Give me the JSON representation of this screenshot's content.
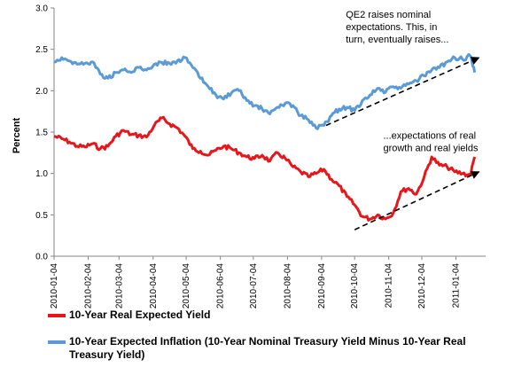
{
  "chart_data": {
    "type": "line",
    "title": "",
    "xlabel": "",
    "ylabel": "Percent",
    "ylim": [
      0,
      3
    ],
    "y_ticks": [
      "0.0",
      "0.5",
      "1.0",
      "1.5",
      "2.0",
      "2.5",
      "3.0"
    ],
    "x_tick_labels": [
      "2010-01-04",
      "2010-02-04",
      "2010-03-04",
      "2010-04-04",
      "2010-05-04",
      "2010-06-04",
      "2010-07-04",
      "2010-08-04",
      "2010-09-04",
      "2010-10-04",
      "2010-11-04",
      "2010-12-04",
      "2011-01-04"
    ],
    "grid": false,
    "legend_position": "bottom",
    "series": [
      {
        "name": "10-Year Real Expected Yield",
        "color": "#e8161b",
        "points": [
          [
            "2010-01-04",
            1.45
          ],
          [
            "2010-01-11",
            1.42
          ],
          [
            "2010-01-18",
            1.38
          ],
          [
            "2010-01-25",
            1.33
          ],
          [
            "2010-02-01",
            1.32
          ],
          [
            "2010-02-08",
            1.36
          ],
          [
            "2010-02-15",
            1.3
          ],
          [
            "2010-02-22",
            1.33
          ],
          [
            "2010-03-01",
            1.45
          ],
          [
            "2010-03-08",
            1.52
          ],
          [
            "2010-03-15",
            1.47
          ],
          [
            "2010-03-22",
            1.46
          ],
          [
            "2010-03-29",
            1.44
          ],
          [
            "2010-04-05",
            1.58
          ],
          [
            "2010-04-12",
            1.67
          ],
          [
            "2010-04-19",
            1.6
          ],
          [
            "2010-04-26",
            1.55
          ],
          [
            "2010-05-03",
            1.45
          ],
          [
            "2010-05-10",
            1.3
          ],
          [
            "2010-05-17",
            1.27
          ],
          [
            "2010-05-24",
            1.22
          ],
          [
            "2010-05-31",
            1.28
          ],
          [
            "2010-06-07",
            1.33
          ],
          [
            "2010-06-14",
            1.3
          ],
          [
            "2010-06-21",
            1.25
          ],
          [
            "2010-06-28",
            1.2
          ],
          [
            "2010-07-05",
            1.18
          ],
          [
            "2010-07-12",
            1.22
          ],
          [
            "2010-07-19",
            1.15
          ],
          [
            "2010-07-26",
            1.25
          ],
          [
            "2010-08-02",
            1.18
          ],
          [
            "2010-08-09",
            1.08
          ],
          [
            "2010-08-16",
            1.02
          ],
          [
            "2010-08-23",
            0.96
          ],
          [
            "2010-08-30",
            1.0
          ],
          [
            "2010-09-06",
            1.05
          ],
          [
            "2010-09-13",
            0.93
          ],
          [
            "2010-09-20",
            0.85
          ],
          [
            "2010-09-27",
            0.72
          ],
          [
            "2010-10-04",
            0.62
          ],
          [
            "2010-10-11",
            0.48
          ],
          [
            "2010-10-18",
            0.45
          ],
          [
            "2010-10-25",
            0.5
          ],
          [
            "2010-11-01",
            0.45
          ],
          [
            "2010-11-08",
            0.52
          ],
          [
            "2010-11-15",
            0.78
          ],
          [
            "2010-11-22",
            0.82
          ],
          [
            "2010-11-29",
            0.75
          ],
          [
            "2010-12-06",
            0.95
          ],
          [
            "2010-12-13",
            1.2
          ],
          [
            "2010-12-20",
            1.1
          ],
          [
            "2010-12-27",
            1.08
          ],
          [
            "2011-01-03",
            1.02
          ],
          [
            "2011-01-10",
            1.0
          ],
          [
            "2011-01-17",
            0.98
          ],
          [
            "2011-01-21",
            1.2
          ]
        ]
      },
      {
        "name": "10-Year Expected Inflation (10-Year Nominal Treasury Yield Minus 10-Year Real Treasury Yield)",
        "color": "#5b9bd5",
        "points": [
          [
            "2010-01-04",
            2.35
          ],
          [
            "2010-01-11",
            2.4
          ],
          [
            "2010-01-18",
            2.36
          ],
          [
            "2010-01-25",
            2.32
          ],
          [
            "2010-02-01",
            2.33
          ],
          [
            "2010-02-08",
            2.35
          ],
          [
            "2010-02-15",
            2.2
          ],
          [
            "2010-02-22",
            2.15
          ],
          [
            "2010-03-01",
            2.22
          ],
          [
            "2010-03-08",
            2.25
          ],
          [
            "2010-03-15",
            2.22
          ],
          [
            "2010-03-22",
            2.28
          ],
          [
            "2010-03-29",
            2.25
          ],
          [
            "2010-04-05",
            2.32
          ],
          [
            "2010-04-12",
            2.34
          ],
          [
            "2010-04-19",
            2.33
          ],
          [
            "2010-04-26",
            2.36
          ],
          [
            "2010-05-03",
            2.4
          ],
          [
            "2010-05-10",
            2.28
          ],
          [
            "2010-05-17",
            2.15
          ],
          [
            "2010-05-24",
            2.05
          ],
          [
            "2010-05-31",
            1.95
          ],
          [
            "2010-06-07",
            1.9
          ],
          [
            "2010-06-14",
            1.97
          ],
          [
            "2010-06-21",
            2.0
          ],
          [
            "2010-06-28",
            1.88
          ],
          [
            "2010-07-05",
            1.82
          ],
          [
            "2010-07-12",
            1.78
          ],
          [
            "2010-07-19",
            1.72
          ],
          [
            "2010-07-26",
            1.8
          ],
          [
            "2010-08-02",
            1.85
          ],
          [
            "2010-08-09",
            1.82
          ],
          [
            "2010-08-16",
            1.7
          ],
          [
            "2010-08-23",
            1.65
          ],
          [
            "2010-08-30",
            1.55
          ],
          [
            "2010-09-06",
            1.58
          ],
          [
            "2010-09-13",
            1.7
          ],
          [
            "2010-09-20",
            1.78
          ],
          [
            "2010-09-27",
            1.8
          ],
          [
            "2010-10-04",
            1.76
          ],
          [
            "2010-10-11",
            1.88
          ],
          [
            "2010-10-18",
            1.95
          ],
          [
            "2010-10-25",
            2.03
          ],
          [
            "2010-11-01",
            1.98
          ],
          [
            "2010-11-08",
            2.05
          ],
          [
            "2010-11-15",
            2.03
          ],
          [
            "2010-11-22",
            2.08
          ],
          [
            "2010-11-29",
            2.12
          ],
          [
            "2010-12-06",
            2.18
          ],
          [
            "2010-12-13",
            2.25
          ],
          [
            "2010-12-20",
            2.28
          ],
          [
            "2010-12-27",
            2.35
          ],
          [
            "2011-01-03",
            2.4
          ],
          [
            "2011-01-10",
            2.38
          ],
          [
            "2011-01-17",
            2.42
          ],
          [
            "2011-01-21",
            2.22
          ]
        ]
      }
    ],
    "trend_arrows": [
      {
        "from": [
          "2010-09-08",
          1.58
        ],
        "to": [
          "2011-01-25",
          2.4
        ]
      },
      {
        "from": [
          "2010-10-04",
          0.32
        ],
        "to": [
          "2011-01-25",
          1.02
        ]
      }
    ],
    "annotations": [
      {
        "lines": [
          "QE2 raises nominal",
          "expectations.  This, in",
          "turn, eventually raises..."
        ],
        "anchor": [
          "2010-09-26",
          2.88
        ]
      },
      {
        "lines": [
          "...expectations of real",
          "growth and real yields"
        ],
        "anchor": [
          "2010-10-30",
          1.42
        ]
      }
    ]
  }
}
